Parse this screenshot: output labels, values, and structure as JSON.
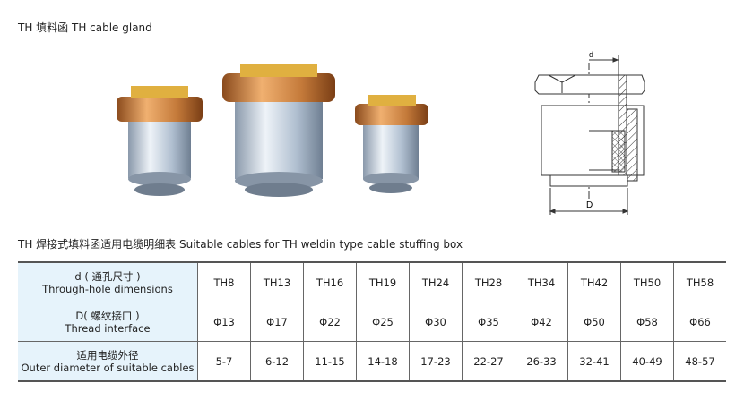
{
  "title": "TH 填料函 TH cable gland",
  "drawing": {
    "d_label": "d",
    "D_label": "D"
  },
  "table_title": "TH 焊接式填料函适用电缆明细表 Suitable cables for TH weldin type cable stuffing box",
  "table": {
    "rows": [
      {
        "header_cn": "d ( 通孔尺寸 )",
        "header_en": "Through-hole dimensions",
        "values": [
          "TH8",
          "TH13",
          "TH16",
          "TH19",
          "TH24",
          "TH28",
          "TH34",
          "TH42",
          "TH50",
          "TH58"
        ]
      },
      {
        "header_cn": "D( 螺纹接口 )",
        "header_en": "Thread interface",
        "values": [
          "Φ13",
          "Φ17",
          "Φ22",
          "Φ25",
          "Φ30",
          "Φ35",
          "Φ42",
          "Φ50",
          "Φ58",
          "Φ66"
        ]
      },
      {
        "header_cn": "适用电缆外径",
        "header_en": "Outer diameter of suitable cables",
        "values": [
          "5-7",
          "6-12",
          "11-15",
          "14-18",
          "17-23",
          "22-27",
          "26-33",
          "32-41",
          "40-49",
          "48-57"
        ]
      }
    ]
  },
  "colors": {
    "header_bg": "#e6f3fb",
    "brass": "#c8873a",
    "aluminum": "#b8c6d6"
  }
}
